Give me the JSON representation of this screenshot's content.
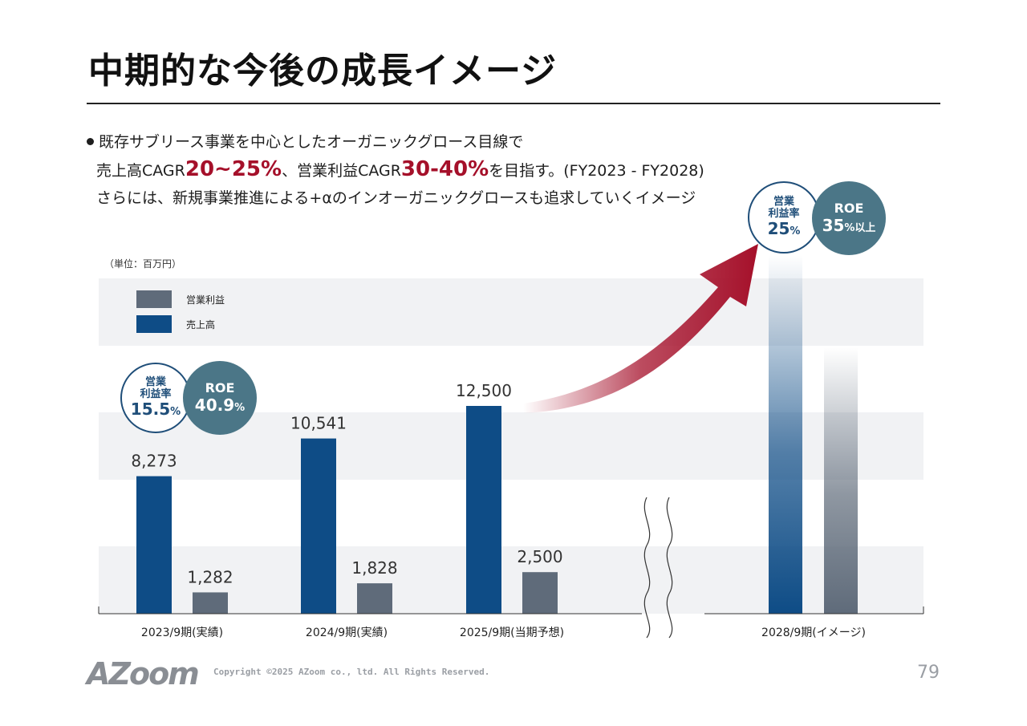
{
  "title": "中期的な今後の成長イメージ",
  "bullet": {
    "line1": "既存サブリース事業を中心としたオーガニックグロース目線で",
    "line2_a": "売上高CAGR",
    "line2_hl1": "20~25%",
    "line2_b": "、営業利益CAGR",
    "line2_hl2": "30-40%",
    "line2_c": "を目指す。(FY2023 - FY2028)",
    "line3": "さらには、新規事業推進による+αのインオーガニックグロースも追求していくイメージ"
  },
  "unit_label": "（単位：百万円）",
  "badges": {
    "fy2023_margin_label1": "営業",
    "fy2023_margin_label2": "利益率",
    "fy2023_margin_value": "15.5",
    "fy2023_margin_pct": "%",
    "fy2023_roe_label": "ROE",
    "fy2023_roe_value": "40.9",
    "fy2023_roe_pct": "%",
    "fy2028_margin_label1": "営業",
    "fy2028_margin_label2": "利益率",
    "fy2028_margin_value": "25",
    "fy2028_margin_pct": "%",
    "fy2028_roe_label": "ROE",
    "fy2028_roe_value": "35",
    "fy2028_roe_pct": "%以上"
  },
  "colors": {
    "sales": "#0e4c86",
    "operating_profit": "#5f6b7a",
    "arrow": "#a5102a",
    "band": "#f1f2f4"
  },
  "chart_data": {
    "type": "bar",
    "categories": [
      "2023/9期(実績)",
      "2024/9期(実績)",
      "2025/9期(当期予想)",
      "2028/9期(イメージ)"
    ],
    "series": [
      {
        "name": "売上高",
        "values": [
          8273,
          10541,
          12500,
          null
        ]
      },
      {
        "name": "営業利益",
        "values": [
          1282,
          1828,
          2500,
          null
        ]
      }
    ],
    "data_labels": {
      "売上高": [
        "8,273",
        "10,541",
        "12,500",
        ""
      ],
      "営業利益": [
        "1,282",
        "1,828",
        "2,500",
        ""
      ]
    },
    "axis_break_before_last": true,
    "last_category_illustrative": true,
    "legend": [
      "営業利益",
      "売上高"
    ],
    "legend_position": "top-left",
    "ylim": [
      0,
      20000
    ],
    "title": "",
    "xlabel": "",
    "ylabel": ""
  },
  "footer": {
    "logo": "AZoom",
    "copyright": "Copyright ©2025 AZoom co., ltd. All Rights Reserved.",
    "page": "79"
  }
}
